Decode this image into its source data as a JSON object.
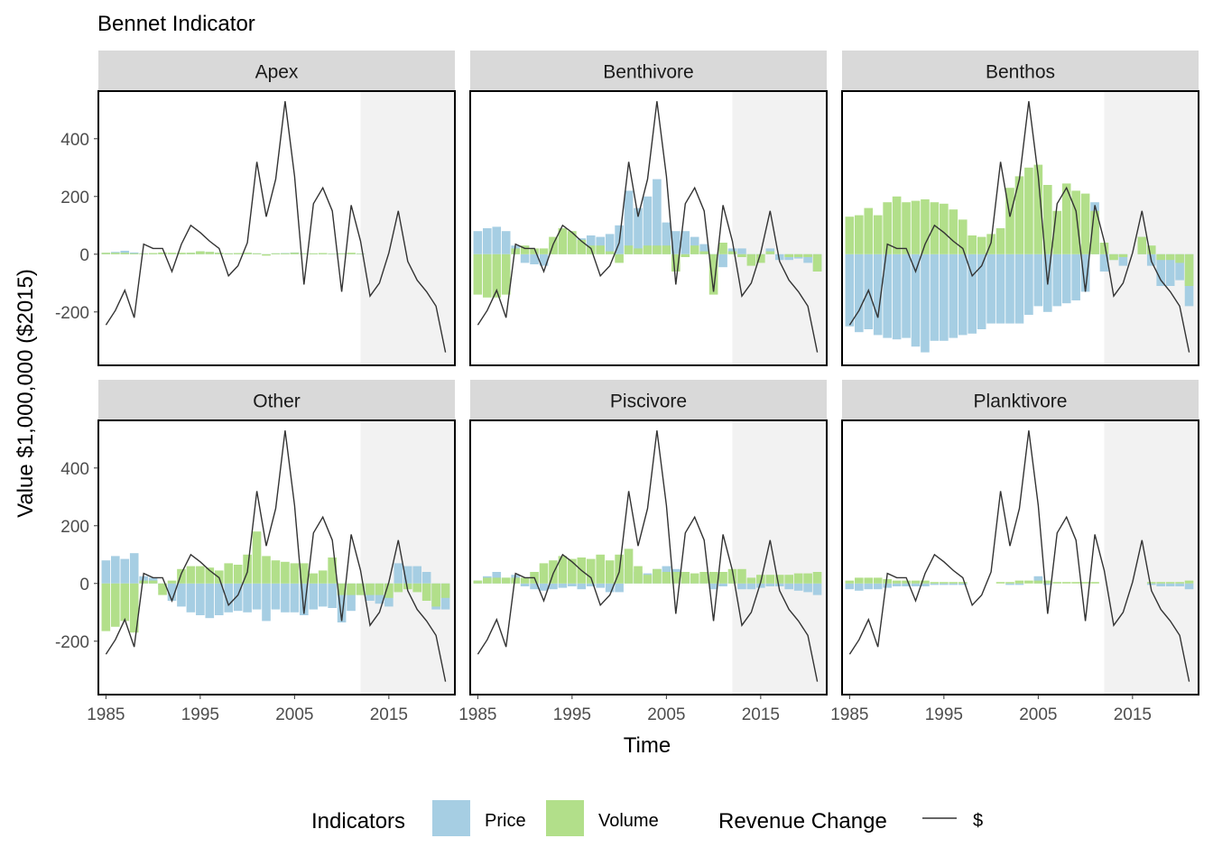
{
  "chart_data": {
    "type": "bar",
    "title": "Bennet Indicator",
    "xlabel": "Time",
    "ylabel": "Value $1,000,000 ($2015)",
    "xlim": [
      1984.2,
      2022.0
    ],
    "ylim": [
      -385,
      565
    ],
    "x_ticks": [
      1985,
      1995,
      2005,
      2015
    ],
    "y_ticks": [
      -200,
      0,
      200,
      400
    ],
    "shaded_region": {
      "x_from": 2012,
      "x_to": 2022,
      "color": "#f2f2f2"
    },
    "grid": false,
    "legend": {
      "position": "bottom",
      "fill_title": "Indicators",
      "line_title": "Revenue Change",
      "items": [
        {
          "label": "Price",
          "color": "#a6cee3"
        },
        {
          "label": "Volume",
          "color": "#b2df8a"
        }
      ],
      "line_label": "$",
      "line_color": "#333333"
    },
    "years": [
      1985,
      1986,
      1987,
      1988,
      1989,
      1990,
      1991,
      1992,
      1993,
      1994,
      1995,
      1996,
      1997,
      1998,
      1999,
      2000,
      2001,
      2002,
      2003,
      2004,
      2005,
      2006,
      2007,
      2008,
      2009,
      2010,
      2011,
      2012,
      2013,
      2014,
      2015,
      2016,
      2017,
      2018,
      2019,
      2020,
      2021
    ],
    "revenue_change": [
      -245,
      -195,
      -125,
      -220,
      35,
      20,
      20,
      -60,
      35,
      100,
      75,
      45,
      20,
      -75,
      -40,
      40,
      320,
      130,
      260,
      530,
      270,
      -105,
      175,
      230,
      150,
      -130,
      170,
      45,
      -145,
      -100,
      5,
      150,
      -25,
      -90,
      -130,
      -180,
      -340
    ],
    "panels": [
      {
        "name": "Apex",
        "price": [
          5,
          8,
          12,
          6,
          3,
          2,
          4,
          3,
          3,
          5,
          10,
          8,
          5,
          3,
          4,
          5,
          3,
          -2,
          3,
          4,
          6,
          3,
          2,
          3,
          2,
          3,
          4,
          2,
          0,
          0,
          0,
          0,
          0,
          0,
          0,
          0,
          0
        ],
        "volume": [
          5,
          5,
          5,
          3,
          3,
          4,
          6,
          5,
          5,
          5,
          10,
          8,
          5,
          3,
          4,
          5,
          3,
          -5,
          3,
          3,
          5,
          3,
          3,
          4,
          2,
          3,
          5,
          2,
          0,
          0,
          0,
          0,
          0,
          0,
          0,
          0,
          0
        ]
      },
      {
        "name": "Benthivore",
        "price": [
          80,
          90,
          95,
          80,
          30,
          -30,
          -35,
          -40,
          40,
          70,
          60,
          55,
          65,
          60,
          70,
          100,
          220,
          160,
          200,
          260,
          110,
          80,
          80,
          60,
          35,
          -30,
          -45,
          20,
          20,
          -5,
          -5,
          20,
          -20,
          -20,
          -15,
          -30,
          -60
        ],
        "volume": [
          -140,
          -150,
          -150,
          -140,
          20,
          30,
          20,
          20,
          60,
          90,
          80,
          50,
          30,
          30,
          10,
          -30,
          30,
          20,
          30,
          30,
          30,
          -60,
          -10,
          30,
          10,
          -140,
          40,
          10,
          -10,
          -40,
          -30,
          10,
          0,
          -10,
          -10,
          -10,
          -60
        ]
      },
      {
        "name": "Benthos",
        "price": [
          -250,
          -270,
          -260,
          -280,
          -290,
          -295,
          -290,
          -320,
          -340,
          -300,
          -300,
          -290,
          -280,
          -275,
          -260,
          -240,
          -240,
          -240,
          -240,
          -210,
          -180,
          -200,
          -180,
          -170,
          -160,
          -130,
          180,
          -60,
          -20,
          -40,
          0,
          60,
          -40,
          -110,
          -110,
          -90,
          -180
        ],
        "volume": [
          130,
          135,
          160,
          135,
          180,
          200,
          180,
          185,
          190,
          180,
          175,
          155,
          120,
          65,
          60,
          70,
          90,
          230,
          270,
          300,
          310,
          240,
          150,
          245,
          220,
          210,
          150,
          40,
          -20,
          -10,
          0,
          60,
          30,
          -20,
          -20,
          -30,
          -110
        ]
      },
      {
        "name": "Other",
        "price": [
          80,
          95,
          85,
          105,
          25,
          20,
          -20,
          -60,
          -80,
          -100,
          -110,
          -120,
          -110,
          -100,
          -95,
          -100,
          -90,
          -130,
          -90,
          -100,
          -100,
          -110,
          -90,
          -80,
          -85,
          -135,
          -95,
          -40,
          -60,
          -70,
          -80,
          70,
          60,
          60,
          40,
          -90,
          -90
        ],
        "volume": [
          -165,
          -150,
          -130,
          -170,
          10,
          10,
          -40,
          10,
          50,
          60,
          60,
          55,
          45,
          70,
          65,
          100,
          180,
          95,
          80,
          75,
          70,
          70,
          35,
          45,
          90,
          -40,
          -40,
          -40,
          -40,
          -40,
          -50,
          -30,
          -20,
          -30,
          -60,
          -80,
          -50
        ]
      },
      {
        "name": "Piscivore",
        "price": [
          10,
          25,
          40,
          20,
          30,
          -10,
          -20,
          -25,
          -20,
          -15,
          -10,
          -20,
          -10,
          -15,
          -30,
          -30,
          50,
          40,
          35,
          50,
          60,
          50,
          30,
          20,
          10,
          -20,
          -10,
          5,
          -20,
          -20,
          -15,
          -10,
          -10,
          -20,
          -25,
          -30,
          -40
        ],
        "volume": [
          10,
          20,
          20,
          20,
          20,
          20,
          40,
          70,
          80,
          95,
          85,
          90,
          85,
          100,
          80,
          100,
          120,
          60,
          30,
          50,
          40,
          40,
          40,
          35,
          40,
          40,
          40,
          50,
          50,
          20,
          30,
          30,
          30,
          30,
          35,
          35,
          40
        ]
      },
      {
        "name": "Planktivore",
        "price": [
          -20,
          -25,
          -20,
          -20,
          -15,
          -10,
          -10,
          -10,
          -10,
          -5,
          -5,
          -5,
          -5,
          0,
          0,
          0,
          0,
          -5,
          -5,
          0,
          25,
          -5,
          0,
          0,
          0,
          0,
          0,
          0,
          0,
          0,
          0,
          0,
          -5,
          -10,
          -10,
          -10,
          -20
        ],
        "volume": [
          10,
          20,
          20,
          20,
          15,
          10,
          10,
          10,
          10,
          5,
          5,
          5,
          5,
          0,
          0,
          0,
          5,
          5,
          10,
          10,
          10,
          10,
          5,
          5,
          5,
          5,
          5,
          0,
          0,
          0,
          0,
          0,
          5,
          5,
          5,
          5,
          10
        ]
      }
    ]
  }
}
